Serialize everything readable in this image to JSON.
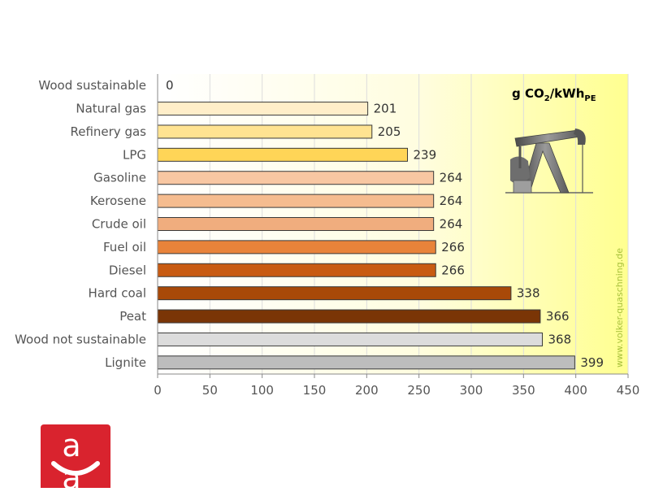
{
  "chart_data": {
    "type": "bar",
    "orientation": "horizontal",
    "unit": {
      "main": "g CO",
      "sub1": "2",
      "mid": "/kWh",
      "sub2": "PE"
    },
    "watermark": "www.volker-quaschning.de",
    "categories": [
      "Wood sustainable",
      "Natural gas",
      "Refinery gas",
      "LPG",
      "Gasoline",
      "Kerosene",
      "Crude oil",
      "Fuel oil",
      "Diesel",
      "Hard coal",
      "Peat",
      "Wood not sustainable",
      "Lignite"
    ],
    "values": [
      0,
      201,
      205,
      239,
      264,
      264,
      264,
      266,
      266,
      338,
      366,
      368,
      399
    ],
    "value_labels": [
      "0",
      "201",
      "205",
      "239",
      "264",
      "264",
      "264",
      "266",
      "266",
      "338",
      "366",
      "368",
      "399"
    ],
    "colors": [
      "#fff4d8",
      "#ffeec9",
      "#ffe391",
      "#ffd557",
      "#f8c7a2",
      "#f5bc8f",
      "#f0ad7e",
      "#e8833a",
      "#c85b12",
      "#a84908",
      "#7a3506",
      "#dcdcdc",
      "#bdbdbd"
    ],
    "xlim": [
      0,
      450
    ],
    "xticks": [
      0,
      50,
      100,
      150,
      200,
      250,
      300,
      350,
      400,
      450
    ],
    "xtick_labels": [
      "0",
      "50",
      "100",
      "150",
      "200",
      "250",
      "300",
      "350",
      "400",
      "450"
    ],
    "grid": true,
    "background_gradient": [
      "#ffffff",
      "#fffcc8",
      "#ffff8f"
    ]
  },
  "logo": {
    "text": "a a"
  }
}
